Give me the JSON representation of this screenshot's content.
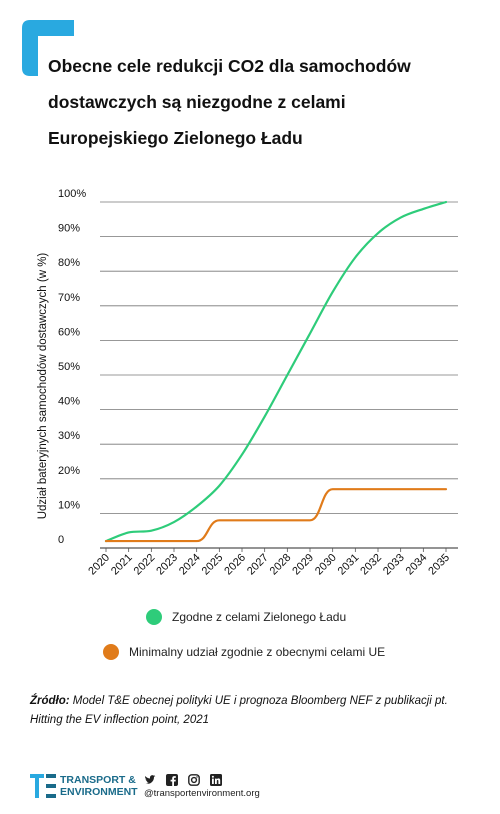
{
  "header": {
    "title_lines": [
      "Obecne cele redukcji CO2 dla samochodów",
      "dostawczych są niezgodne z celami",
      "Europejskiego Zielonego Ładu"
    ]
  },
  "chart_data": {
    "type": "line",
    "title": "Obecne cele redukcji CO2 dla samochodów dostawczych są niezgodne z celami Europejskiego Zielonego Ładu",
    "ylabel": "Udział bateryjnych samochodów dostawczych (w %)",
    "xlabel": "",
    "x": [
      2020,
      2021,
      2022,
      2023,
      2024,
      2025,
      2026,
      2027,
      2028,
      2029,
      2030,
      2031,
      2032,
      2033,
      2034,
      2035
    ],
    "xticks": [
      "2020",
      "2021",
      "2022",
      "2023",
      "2024",
      "2025",
      "2026",
      "2027",
      "2028",
      "2029",
      "2030",
      "2031",
      "2032",
      "2033",
      "2034",
      "2035"
    ],
    "ylim": [
      0,
      100
    ],
    "yticks": [
      "0",
      "10%",
      "20%",
      "30%",
      "40%",
      "50%",
      "60%",
      "70%",
      "80%",
      "90%",
      "100%"
    ],
    "grid": true,
    "legend_position": "bottom",
    "series": [
      {
        "name": "Zgodne z celami Zielonego Ładu",
        "color": "#2ecc7a",
        "values": [
          2,
          4.5,
          5,
          7.5,
          12,
          18,
          27,
          38,
          50,
          62,
          74,
          84,
          91,
          95.5,
          98,
          100
        ]
      },
      {
        "name": "Minimalny udział zgodnie z obecnymi celami UE",
        "color": "#e07b1a",
        "step": true,
        "values": [
          2,
          2,
          2,
          2,
          2,
          8,
          8,
          8,
          8,
          8,
          17,
          17,
          17,
          17,
          17,
          17
        ]
      }
    ]
  },
  "legend": {
    "items": [
      {
        "label": "Zgodne z celami Zielonego Ładu",
        "color": "#2ecc7a"
      },
      {
        "label": "Minimalny udział zgodnie z obecnymi celami UE",
        "color": "#e07b1a"
      }
    ]
  },
  "source": {
    "prefix": "Źródło:",
    "text": " Model T&E obecnej polityki UE i prognoza Bloomberg NEF z publikacji pt. Hitting the EV inflection point, 2021"
  },
  "footer": {
    "brand_line1": "TRANSPORT &",
    "brand_line2": "ENVIRONMENT",
    "handle": "@transportenvironment.org",
    "icons": [
      "twitter-icon",
      "facebook-icon",
      "instagram-icon",
      "linkedin-icon"
    ],
    "accent": "#1a6b8a"
  }
}
